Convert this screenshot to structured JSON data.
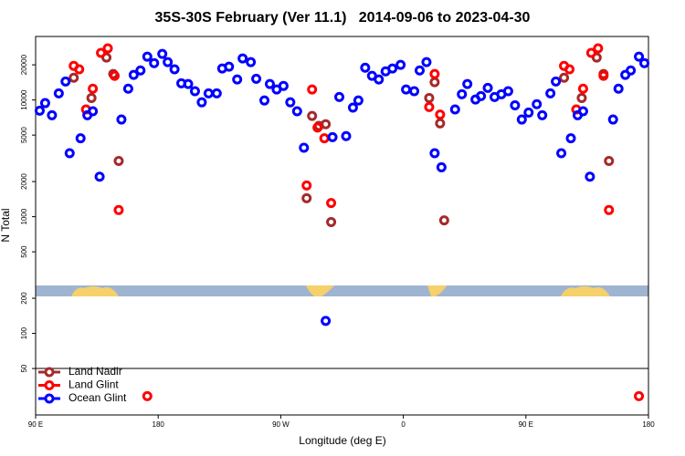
{
  "chart_data": {
    "type": "scatter",
    "title": "35S-30S February (Ver 11.1)   2014-09-06 to 2023-04-30",
    "xlabel": "Longitude (deg E)",
    "ylabel": "N Total",
    "xlim": [
      90,
      540
    ],
    "xticks": [
      {
        "value": 90,
        "label": "90 E"
      },
      {
        "value": 180,
        "label": "180"
      },
      {
        "value": 270,
        "label": "90 W"
      },
      {
        "value": 360,
        "label": "0"
      },
      {
        "value": 450,
        "label": "90 E"
      },
      {
        "value": 540,
        "label": "180"
      }
    ],
    "ylim": [
      20,
      35000
    ],
    "yticks": [
      50,
      100,
      200,
      500,
      1000,
      2000,
      5000,
      10000,
      20000
    ],
    "log_y": true,
    "legend": "bottom-left",
    "series": [
      {
        "name": "Land Nadir",
        "color": "#a52a2a",
        "x": [
          118,
          131,
          142,
          147,
          151,
          289,
          293,
          298,
          303,
          307,
          379,
          383,
          387,
          390,
          478,
          491,
          502,
          507,
          511
        ],
        "values": [
          15500,
          10400,
          23100,
          16700,
          3000,
          1440,
          7300,
          6000,
          6200,
          900,
          10400,
          14200,
          6300,
          930,
          15500,
          10400,
          23100,
          16700,
          3000
        ]
      },
      {
        "name": "Land Glint",
        "color": "#ff0000",
        "x": [
          118,
          122,
          127,
          132,
          138,
          143,
          148,
          151,
          172,
          289,
          293,
          297,
          302,
          307,
          379,
          383,
          387,
          478,
          482,
          487,
          492,
          498,
          503,
          507,
          511,
          533
        ],
        "values": [
          19600,
          18300,
          8300,
          12500,
          25300,
          27700,
          16100,
          1140,
          29,
          1850,
          12300,
          5800,
          4700,
          1310,
          8700,
          16700,
          7500,
          19600,
          18300,
          8300,
          12500,
          25300,
          27700,
          16100,
          1140,
          29
        ]
      },
      {
        "name": "Ocean Glint",
        "color": "#0000ff",
        "x": [
          93,
          97,
          102,
          107,
          112,
          115,
          123,
          128,
          132,
          137,
          153,
          158,
          162,
          167,
          172,
          177,
          183,
          187,
          192,
          197,
          202,
          207,
          212,
          217,
          223,
          227,
          232,
          238,
          242,
          248,
          252,
          258,
          262,
          267,
          272,
          277,
          282,
          287,
          303,
          308,
          313,
          318,
          323,
          327,
          332,
          337,
          342,
          347,
          352,
          358,
          362,
          368,
          372,
          377,
          383,
          388,
          398,
          403,
          407,
          413,
          417,
          422,
          427,
          432,
          437,
          442,
          447,
          452,
          458,
          462,
          468,
          472,
          476,
          483,
          488,
          492,
          497,
          514,
          518,
          523,
          527,
          533,
          537
        ],
        "values": [
          8100,
          9400,
          7400,
          11400,
          14400,
          3500,
          4700,
          7400,
          8000,
          2200,
          6800,
          12500,
          16400,
          17900,
          23500,
          20700,
          24800,
          21100,
          18300,
          13900,
          13700,
          11900,
          9550,
          11400,
          11400,
          18600,
          19300,
          15000,
          22700,
          21100,
          15200,
          9900,
          13700,
          12300,
          13200,
          9550,
          8000,
          3900,
          128,
          4800,
          10600,
          4900,
          8600,
          9900,
          18900,
          16100,
          15000,
          17600,
          18600,
          20000,
          12300,
          11900,
          17900,
          21100,
          3500,
          2650,
          8300,
          11200,
          13700,
          10100,
          10800,
          12700,
          10600,
          11200,
          11900,
          9000,
          6800,
          7800,
          9200,
          7400,
          11400,
          14400,
          3500,
          4700,
          7400,
          8000,
          2200,
          6800,
          12500,
          16400,
          17900,
          23500,
          20700
        ]
      }
    ]
  }
}
